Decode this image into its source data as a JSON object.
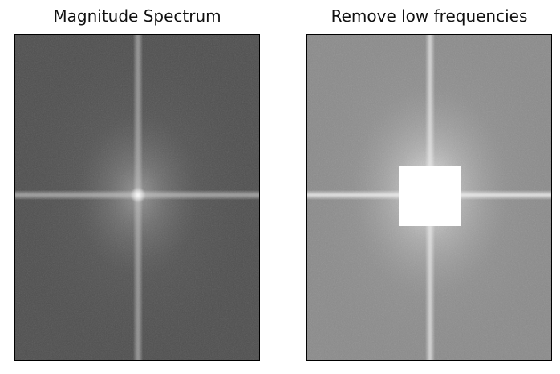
{
  "figure": {
    "panels": [
      {
        "title": "Magnitude Spectrum"
      },
      {
        "title": "Remove low frequencies"
      }
    ]
  }
}
